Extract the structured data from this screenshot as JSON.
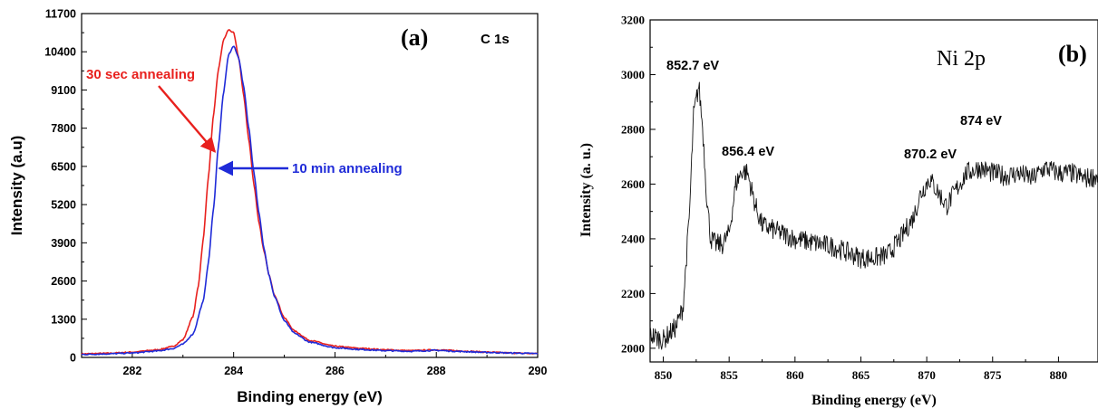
{
  "chart_data": [
    {
      "panel_label": "(a)",
      "type": "line",
      "title": "",
      "inset_label": "C 1s",
      "xlabel": "Binding energy (eV)",
      "ylabel": "Intensity (a.u)",
      "xlim": [
        281,
        290
      ],
      "ylim": [
        0,
        11700
      ],
      "xticks": [
        282,
        284,
        286,
        288,
        290
      ],
      "yticks": [
        0,
        1300,
        2600,
        3900,
        5200,
        6500,
        7800,
        9100,
        10400,
        11700
      ],
      "grid": false,
      "annotations": [
        {
          "text": "30 sec annealing",
          "color": "#e8201d",
          "arrow_to": [
            283.63,
            7000
          ]
        },
        {
          "text": "10 min annealing",
          "color": "#1f2bd8",
          "arrow_to": [
            283.72,
            6700
          ]
        }
      ],
      "series": [
        {
          "name": "30 sec annealing",
          "color": "#e8201d",
          "x": [
            281.0,
            281.5,
            282.0,
            282.5,
            282.8,
            283.0,
            283.2,
            283.3,
            283.4,
            283.5,
            283.6,
            283.7,
            283.8,
            283.9,
            284.0,
            284.1,
            284.2,
            284.3,
            284.4,
            284.5,
            284.6,
            284.7,
            284.8,
            285.0,
            285.2,
            285.5,
            286.0,
            286.5,
            287.0,
            287.5,
            288.0,
            288.5,
            289.0,
            289.5,
            290.0
          ],
          "y": [
            120,
            140,
            180,
            260,
            370,
            600,
            1400,
            2400,
            4000,
            6100,
            8200,
            9800,
            10800,
            11150,
            11050,
            10200,
            8900,
            7400,
            5900,
            4600,
            3600,
            2800,
            2150,
            1350,
            900,
            580,
            380,
            310,
            260,
            230,
            260,
            220,
            180,
            150,
            130
          ]
        },
        {
          "name": "10 min annealing",
          "color": "#1f2bd8",
          "x": [
            281.0,
            281.5,
            282.0,
            282.5,
            282.8,
            283.0,
            283.2,
            283.4,
            283.5,
            283.6,
            283.7,
            283.8,
            283.9,
            284.0,
            284.1,
            284.2,
            284.3,
            284.4,
            284.5,
            284.6,
            284.7,
            284.8,
            285.0,
            285.2,
            285.5,
            286.0,
            286.5,
            287.0,
            287.5,
            288.0,
            288.5,
            289.0,
            289.5,
            290.0
          ],
          "y": [
            100,
            120,
            150,
            220,
            300,
            450,
            800,
            1900,
            3200,
            5000,
            7200,
            9000,
            10300,
            10600,
            10200,
            9200,
            7800,
            6300,
            4900,
            3700,
            2800,
            2100,
            1250,
            820,
            520,
            330,
            270,
            230,
            210,
            240,
            200,
            170,
            150,
            130
          ]
        }
      ]
    },
    {
      "panel_label": "(b)",
      "type": "line",
      "title": "",
      "inset_label": "Ni 2p",
      "xlabel": "Binding energy (eV)",
      "ylabel": "Intensity (a. u.)",
      "xlim": [
        849,
        883
      ],
      "ylim": [
        1950,
        3200
      ],
      "xticks": [
        850,
        855,
        860,
        865,
        870,
        875,
        880
      ],
      "yticks": [
        2000,
        2200,
        2400,
        2600,
        2800,
        3000,
        3200
      ],
      "grid": false,
      "annotations": [
        {
          "text": "852.7 eV",
          "x": 852.7
        },
        {
          "text": "856.4 eV",
          "x": 856.4
        },
        {
          "text": "870.2 eV",
          "x": 870.2
        },
        {
          "text": "874 eV",
          "x": 874
        }
      ],
      "series": [
        {
          "name": "",
          "color": "#111111",
          "noise": 38,
          "x": [
            849.0,
            850.0,
            851.0,
            851.5,
            852.0,
            852.3,
            852.7,
            853.0,
            853.3,
            853.6,
            854.0,
            854.5,
            855.0,
            855.5,
            856.0,
            856.4,
            857.0,
            857.5,
            858.0,
            859.0,
            860.0,
            861.0,
            862.0,
            863.0,
            864.0,
            865.0,
            866.0,
            867.0,
            868.0,
            869.0,
            869.5,
            870.2,
            871.0,
            871.5,
            872.0,
            873.0,
            874.0,
            875.0,
            876.0,
            877.0,
            878.0,
            879.0,
            880.0,
            881.0,
            882.0,
            883.0
          ],
          "y": [
            2050,
            2030,
            2080,
            2150,
            2500,
            2850,
            2960,
            2800,
            2550,
            2400,
            2380,
            2380,
            2420,
            2600,
            2650,
            2640,
            2520,
            2450,
            2440,
            2420,
            2400,
            2390,
            2380,
            2370,
            2350,
            2330,
            2330,
            2340,
            2400,
            2480,
            2560,
            2620,
            2560,
            2520,
            2560,
            2640,
            2660,
            2640,
            2630,
            2640,
            2620,
            2660,
            2640,
            2640,
            2620,
            2630
          ]
        }
      ]
    }
  ]
}
